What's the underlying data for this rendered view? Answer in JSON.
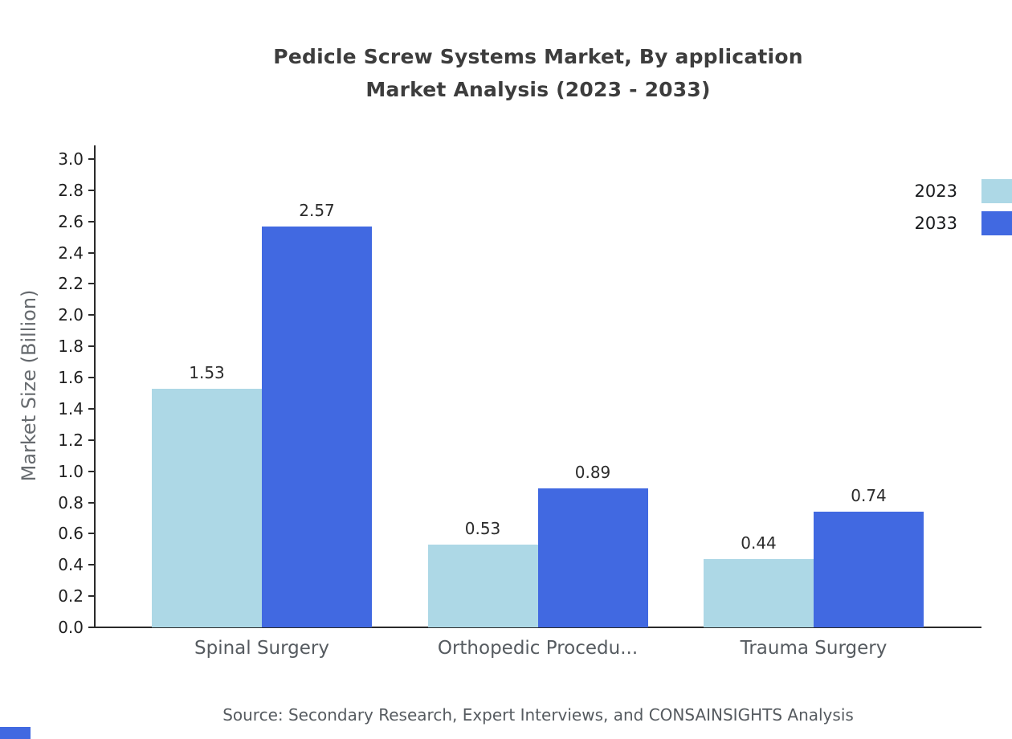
{
  "title": {
    "line1": "Pedicle Screw Systems Market, By application",
    "line2": "Market Analysis (2023 - 2033)"
  },
  "source_note": "Source: Secondary Research, Expert Interviews, and CONSAINSIGHTS Analysis",
  "colors": {
    "series_2023": "#ADD8E6",
    "series_2033": "#4169E1",
    "axis": "#2a2a2a",
    "muted_text": "#565b60"
  },
  "chart_data": {
    "type": "bar",
    "title": "Pedicle Screw Systems Market, By application Market Analysis (2023 - 2033)",
    "categories": [
      "Spinal Surgery",
      "Orthopedic Procedu...",
      "Trauma Surgery"
    ],
    "series": [
      {
        "name": "2023",
        "color": "#ADD8E6",
        "values": [
          1.53,
          0.53,
          0.44
        ]
      },
      {
        "name": "2033",
        "color": "#4169E1",
        "values": [
          2.57,
          0.89,
          0.74
        ]
      }
    ],
    "xlabel": "",
    "ylabel": "Market Size (Billion)",
    "ylim": [
      0,
      3.0
    ],
    "ytick_step": 0.2,
    "grid": false,
    "legend_position": "top-right",
    "value_labels": true
  }
}
